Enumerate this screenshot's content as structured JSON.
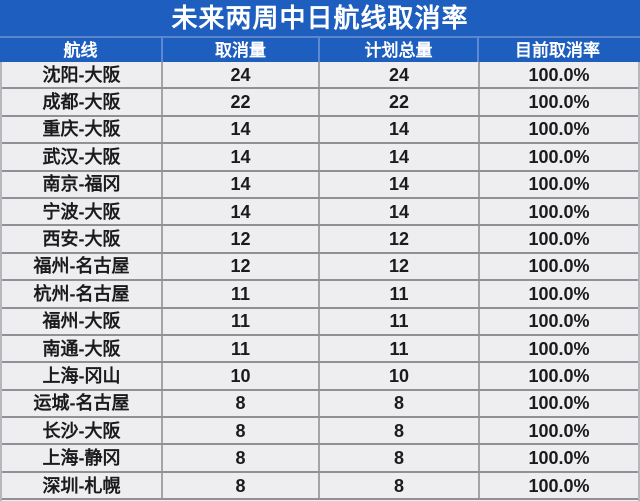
{
  "colors": {
    "header_bg": "#1e5ebe",
    "title_divider": "#5c85cc",
    "row_bg": "#eeeef0",
    "row_divider": "#909095",
    "column_divider": "#a4a4a8",
    "header_text": "#ffffff",
    "body_text": "#1b1b1d"
  },
  "chart_data": {
    "type": "table",
    "title": "未来两周中日航线取消率",
    "columns": [
      "航线",
      "取消量",
      "计划总量",
      "目前取消率"
    ],
    "rows": [
      [
        "沈阳-大阪",
        "24",
        "24",
        "100.0%"
      ],
      [
        "成都-大阪",
        "22",
        "22",
        "100.0%"
      ],
      [
        "重庆-大阪",
        "14",
        "14",
        "100.0%"
      ],
      [
        "武汉-大阪",
        "14",
        "14",
        "100.0%"
      ],
      [
        "南京-福冈",
        "14",
        "14",
        "100.0%"
      ],
      [
        "宁波-大阪",
        "14",
        "14",
        "100.0%"
      ],
      [
        "西安-大阪",
        "12",
        "12",
        "100.0%"
      ],
      [
        "福州-名古屋",
        "12",
        "12",
        "100.0%"
      ],
      [
        "杭州-名古屋",
        "11",
        "11",
        "100.0%"
      ],
      [
        "福州-大阪",
        "11",
        "11",
        "100.0%"
      ],
      [
        "南通-大阪",
        "11",
        "11",
        "100.0%"
      ],
      [
        "上海-冈山",
        "10",
        "10",
        "100.0%"
      ],
      [
        "运城-名古屋",
        "8",
        "8",
        "100.0%"
      ],
      [
        "长沙-大阪",
        "8",
        "8",
        "100.0%"
      ],
      [
        "上海-静冈",
        "8",
        "8",
        "100.0%"
      ],
      [
        "深圳-札幌",
        "8",
        "8",
        "100.0%"
      ]
    ]
  }
}
